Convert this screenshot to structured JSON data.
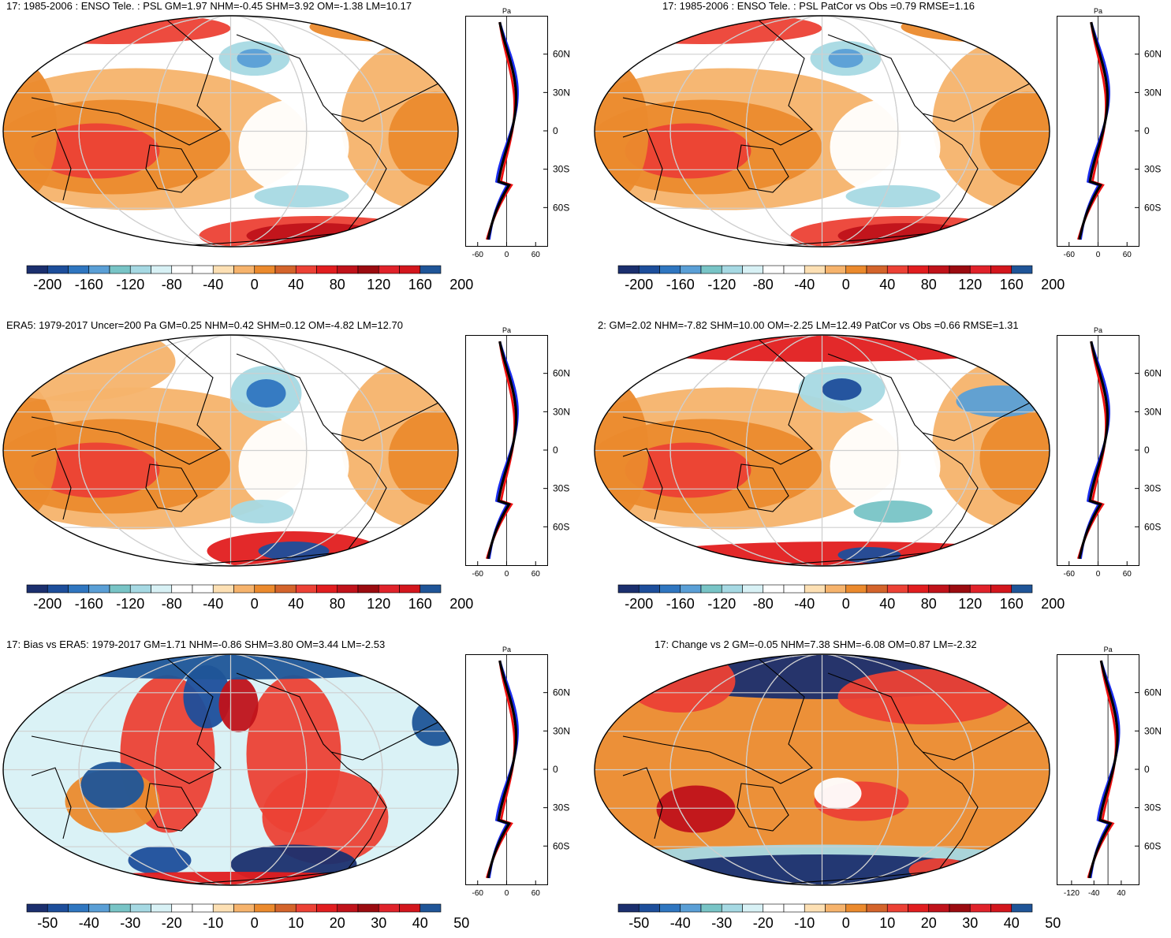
{
  "panels": [
    {
      "id": "p1",
      "title": "17: 1985-2006 : ENSO Tele. : PSL GM=1.97 NHM=-0.45 SHM=3.92 OM=-1.38 LM=10.17",
      "colorbar_labels": [
        "-200",
        "-160",
        "-120",
        "-80",
        "-40",
        "0",
        "40",
        "80",
        "120",
        "160",
        "200"
      ],
      "zonal": {
        "unit": "Pa",
        "lat_labels": [
          "60N",
          "30N",
          "0",
          "30S",
          "60S"
        ],
        "x_ticks": [
          "-60",
          "0",
          "60"
        ]
      },
      "features": [
        "high-positive-tropics",
        "negative-north-pacific",
        "strong-positive-southern-ocean"
      ]
    },
    {
      "id": "p2",
      "title": "17: 1985-2006 : ENSO Tele. : PSL PatCor vs Obs =0.79 RMSE=1.16",
      "colorbar_labels": [
        "-200",
        "-160",
        "-120",
        "-80",
        "-40",
        "0",
        "40",
        "80",
        "120",
        "160",
        "200"
      ],
      "zonal": {
        "unit": "Pa",
        "lat_labels": [
          "60N",
          "30N",
          "0",
          "30S",
          "60S"
        ],
        "x_ticks": [
          "-60",
          "0",
          "60"
        ]
      },
      "features": [
        "high-positive-tropics",
        "negative-north-pacific",
        "strong-positive-southern-ocean"
      ]
    },
    {
      "id": "p3",
      "title": "ERA5: 1979-2017 Uncer=200 Pa GM=0.25 NHM=0.42 SHM=0.12 OM=-4.82 LM=12.70",
      "colorbar_labels": [
        "-200",
        "-160",
        "-120",
        "-80",
        "-40",
        "0",
        "40",
        "80",
        "120",
        "160",
        "200"
      ],
      "zonal": {
        "unit": "Pa",
        "lat_labels": [
          "60N",
          "30N",
          "0",
          "30S",
          "60S"
        ],
        "x_ticks": [
          "-60",
          "0",
          "60"
        ]
      },
      "features": [
        "aleutian-low",
        "positive-tropics",
        "southern-pacific-dipole"
      ]
    },
    {
      "id": "p4",
      "title": "2: GM=2.02 NHM=-7.82 SHM=10.00 OM=-2.25 LM=12.49 PatCor vs Obs =0.66 RMSE=1.31",
      "colorbar_labels": [
        "-200",
        "-160",
        "-120",
        "-80",
        "-40",
        "0",
        "40",
        "80",
        "120",
        "160",
        "200"
      ],
      "zonal": {
        "unit": "Pa",
        "lat_labels": [
          "60N",
          "30N",
          "0",
          "30S",
          "60S"
        ],
        "x_ticks": [
          "-60",
          "0",
          "60"
        ]
      },
      "features": [
        "arctic-positive",
        "aleutian-low",
        "icelandic-low",
        "southern-ocean-positive"
      ]
    },
    {
      "id": "p5",
      "title": "17: Bias vs ERA5: 1979-2017 GM=1.71 NHM=-0.86 SHM=3.80 OM=3.44 LM=-2.53",
      "colorbar_labels": [
        "-50",
        "-40",
        "-30",
        "-20",
        "-10",
        "0",
        "10",
        "20",
        "30",
        "40",
        "50"
      ],
      "zonal": {
        "unit": "Pa",
        "lat_labels": [
          "60N",
          "30N",
          "0",
          "30S",
          "60S"
        ],
        "x_ticks": [
          "-60",
          "0",
          "60"
        ]
      },
      "features": [
        "mixed-bias"
      ]
    },
    {
      "id": "p6",
      "title": "17: Change vs 2 GM=-0.05 NHM=7.38 SHM=-6.08 OM=0.87 LM=-2.32",
      "colorbar_labels": [
        "-50",
        "-40",
        "-30",
        "-20",
        "-10",
        "0",
        "10",
        "20",
        "30",
        "40",
        "50"
      ],
      "zonal": {
        "unit": "Pa",
        "lat_labels": [
          "60N",
          "30N",
          "0",
          "30S",
          "60S"
        ],
        "x_ticks": [
          "-120",
          "-40",
          "40"
        ]
      },
      "features": [
        "polar-negative",
        "midlat-positive"
      ]
    }
  ],
  "colors": {
    "levels": [
      "#1b2f6e",
      "#1a4f9c",
      "#2f79c4",
      "#5aa1d8",
      "#79c9c9",
      "#a9dce8",
      "#d6f2f7",
      "#ffffff",
      "#ffffff",
      "#fde0b2",
      "#f5b26b",
      "#ea8a2e",
      "#d4632b",
      "#e8322a",
      "#c8151b",
      "#9e0c10",
      "#7a0008",
      "#c0182a",
      "#e02430",
      "#1f5aa0"
    ],
    "land_outline": "#000000",
    "zonal_model": "#ee1111",
    "zonal_obs": "#1a2cee",
    "zonal_ref": "#000000"
  }
}
